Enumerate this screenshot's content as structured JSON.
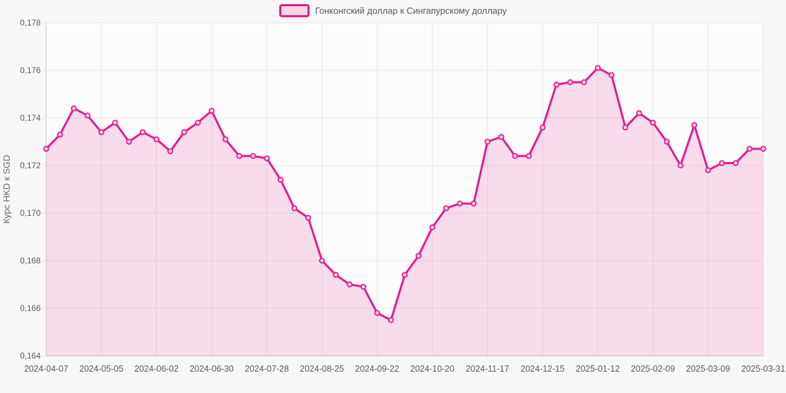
{
  "page": {
    "background": "#f7f7f7"
  },
  "legend": {
    "label": "Гонконгский доллар к Сингапурскому доллару",
    "swatch_fill": "#f9d7e7",
    "swatch_border": "#e51a8c"
  },
  "chart_data": {
    "type": "area",
    "title": "",
    "xlabel": "",
    "ylabel": "Курс HKD к SGD",
    "legend_position": "top-center",
    "grid": true,
    "ylim": [
      0.164,
      0.178
    ],
    "y_ticks": [
      0.164,
      0.166,
      0.168,
      0.17,
      0.172,
      0.174,
      0.176,
      0.178
    ],
    "y_tick_labels": [
      "0,164",
      "0,166",
      "0,168",
      "0,170",
      "0,172",
      "0,174",
      "0,176",
      "0,178"
    ],
    "x_tick_indices": [
      0,
      4,
      8,
      12,
      16,
      20,
      24,
      28,
      32,
      36,
      40,
      44,
      48,
      52
    ],
    "x_tick_labels": [
      "2024-04-07",
      "2024-05-05",
      "2024-06-02",
      "2024-06-30",
      "2024-07-28",
      "2024-08-25",
      "2024-09-22",
      "2024-10-20",
      "2024-11-17",
      "2024-12-15",
      "2025-01-12",
      "2025-02-09",
      "2025-03-09",
      "2025-03-31"
    ],
    "dates": [
      "2024-04-07",
      "2024-04-14",
      "2024-04-21",
      "2024-04-28",
      "2024-05-05",
      "2024-05-12",
      "2024-05-19",
      "2024-05-26",
      "2024-06-02",
      "2024-06-09",
      "2024-06-16",
      "2024-06-23",
      "2024-06-30",
      "2024-07-07",
      "2024-07-14",
      "2024-07-21",
      "2024-07-28",
      "2024-08-04",
      "2024-08-11",
      "2024-08-18",
      "2024-08-25",
      "2024-09-01",
      "2024-09-08",
      "2024-09-15",
      "2024-09-22",
      "2024-09-29",
      "2024-10-06",
      "2024-10-13",
      "2024-10-20",
      "2024-10-27",
      "2024-11-03",
      "2024-11-10",
      "2024-11-17",
      "2024-11-24",
      "2024-12-01",
      "2024-12-08",
      "2024-12-15",
      "2024-12-22",
      "2024-12-29",
      "2025-01-05",
      "2025-01-12",
      "2025-01-19",
      "2025-01-26",
      "2025-02-02",
      "2025-02-09",
      "2025-02-16",
      "2025-02-23",
      "2025-03-02",
      "2025-03-09",
      "2025-03-16",
      "2025-03-23",
      "2025-03-30",
      "2025-03-31"
    ],
    "series": [
      {
        "name": "Гонконгский доллар к Сингапурскому доллару",
        "values": [
          0.1727,
          0.1733,
          0.1744,
          0.1741,
          0.1734,
          0.1738,
          0.173,
          0.1734,
          0.1731,
          0.1726,
          0.1734,
          0.1738,
          0.1743,
          0.1731,
          0.1724,
          0.1724,
          0.1723,
          0.1714,
          0.1702,
          0.1698,
          0.168,
          0.1674,
          0.167,
          0.1669,
          0.1658,
          0.1655,
          0.1674,
          0.1682,
          0.1694,
          0.1702,
          0.1704,
          0.1704,
          0.173,
          0.1732,
          0.1724,
          0.1724,
          0.1736,
          0.1754,
          0.1755,
          0.1755,
          0.1761,
          0.1758,
          0.1736,
          0.1742,
          0.1738,
          0.173,
          0.172,
          0.1737,
          0.1718,
          0.1721,
          0.1721,
          0.1727,
          0.1727
        ]
      }
    ],
    "colors": {
      "line": "#e51a8c",
      "area": "rgba(231,25,141,0.14)",
      "marker_fill": "#f9d2e7",
      "grid": "#e6e6e6",
      "axis": "#c8c8c8",
      "plot_bg": "#fcfcfc",
      "tick_text": "#5a5a5a"
    }
  }
}
